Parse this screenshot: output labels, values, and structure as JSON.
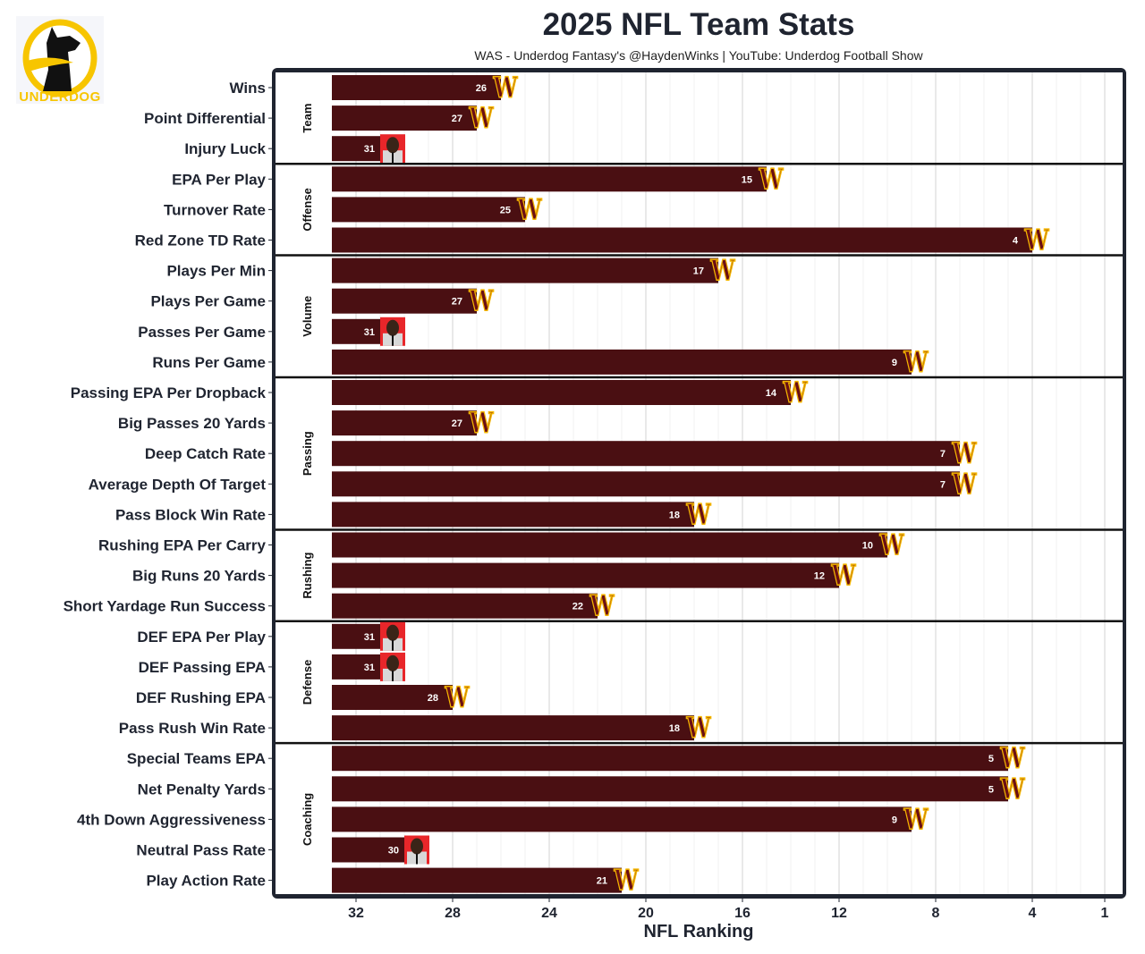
{
  "logo": {
    "text": "UNDERDOG"
  },
  "chart_data": {
    "type": "bar",
    "orientation": "horizontal",
    "title": "2025 NFL Team Stats",
    "subtitle": "WAS - Underdog Fantasy's @HaydenWinks | YouTube: Underdog Football Show",
    "xlabel": "NFL Ranking",
    "xlim": [
      33.2,
      0.3
    ],
    "xticks": [
      32,
      28,
      24,
      20,
      16,
      12,
      8,
      4,
      1
    ],
    "bar_color": "#4a0f12",
    "icon_rule": "team-logo for ranks below 30, crying-face image for ranks 30 and worse",
    "groups": [
      {
        "name": "Team",
        "metrics": [
          {
            "label": "Wins",
            "value": 26
          },
          {
            "label": "Point Differential",
            "value": 27
          },
          {
            "label": "Injury Luck",
            "value": 31
          }
        ]
      },
      {
        "name": "Offense",
        "metrics": [
          {
            "label": "EPA Per Play",
            "value": 15
          },
          {
            "label": "Turnover Rate",
            "value": 25
          },
          {
            "label": "Red Zone TD Rate",
            "value": 4
          }
        ]
      },
      {
        "name": "Volume",
        "metrics": [
          {
            "label": "Plays Per Min",
            "value": 17
          },
          {
            "label": "Plays Per Game",
            "value": 27
          },
          {
            "label": "Passes Per Game",
            "value": 31
          },
          {
            "label": "Runs Per Game",
            "value": 9
          }
        ]
      },
      {
        "name": "Passing",
        "metrics": [
          {
            "label": "Passing EPA Per Dropback",
            "value": 14
          },
          {
            "label": "Big Passes 20 Yards",
            "value": 27
          },
          {
            "label": "Deep Catch Rate",
            "value": 7
          },
          {
            "label": "Average Depth Of Target",
            "value": 7
          },
          {
            "label": "Pass Block Win Rate",
            "value": 18
          }
        ]
      },
      {
        "name": "Rushing",
        "metrics": [
          {
            "label": "Rushing EPA Per Carry",
            "value": 10
          },
          {
            "label": "Big Runs 20 Yards",
            "value": 12
          },
          {
            "label": "Short Yardage Run Success",
            "value": 22
          }
        ]
      },
      {
        "name": "Defense",
        "metrics": [
          {
            "label": "DEF EPA Per Play",
            "value": 31
          },
          {
            "label": "DEF Passing EPA",
            "value": 31
          },
          {
            "label": "DEF Rushing EPA",
            "value": 28
          },
          {
            "label": "Pass Rush Win Rate",
            "value": 18
          }
        ]
      },
      {
        "name": "Coaching",
        "metrics": [
          {
            "label": "Special Teams EPA",
            "value": 5
          },
          {
            "label": "Net Penalty Yards",
            "value": 5
          },
          {
            "label": "4th Down Aggressiveness",
            "value": 9
          },
          {
            "label": "Neutral Pass Rate",
            "value": 30
          },
          {
            "label": "Play Action Rate",
            "value": 21
          }
        ]
      }
    ]
  }
}
